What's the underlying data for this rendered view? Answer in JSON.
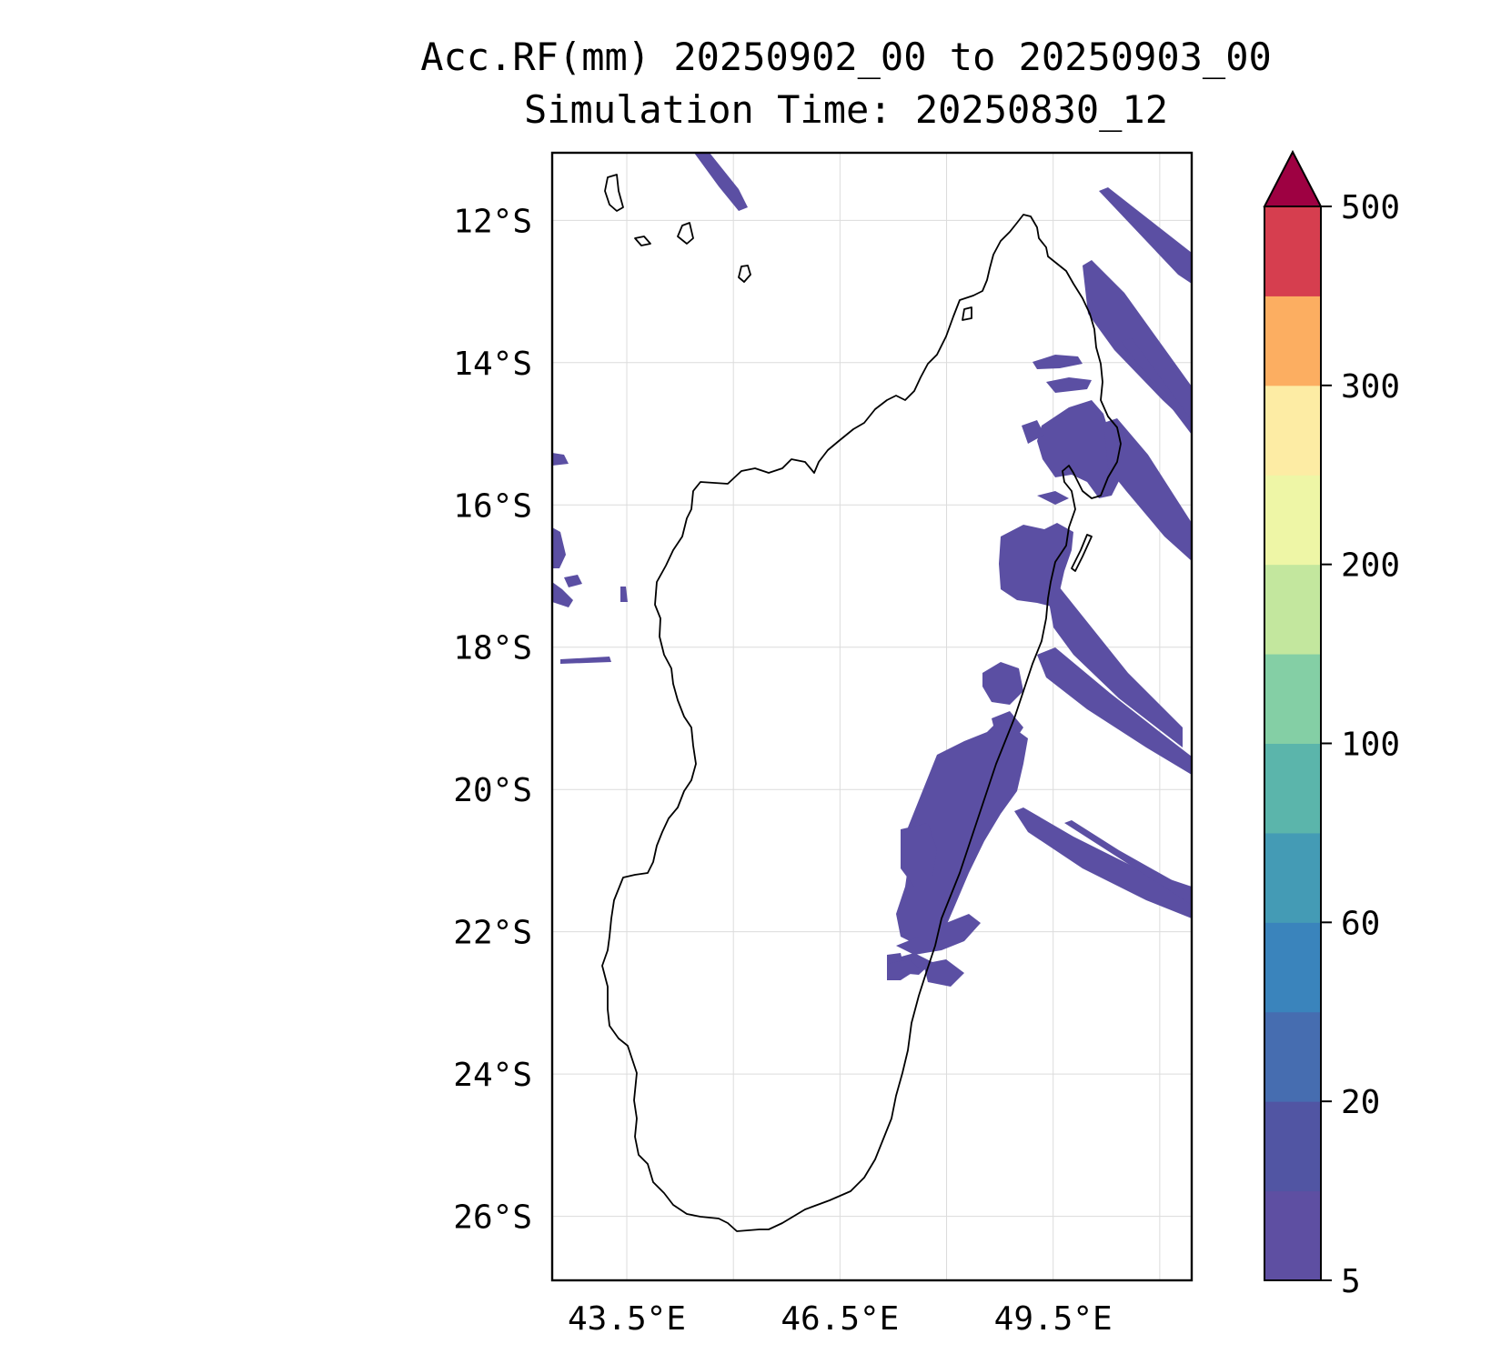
{
  "title": "Acc.RF(mm) 20250902_00 to 20250903_00",
  "subtitle": "Simulation Time: 20250830_12",
  "map": {
    "lon_range": [
      42.45,
      51.45
    ],
    "lat_range": [
      -26.9,
      -11.05
    ],
    "lon_ticks": [
      {
        "value": 43.5,
        "label": "43.5°E"
      },
      {
        "value": 46.5,
        "label": "46.5°E"
      },
      {
        "value": 49.5,
        "label": "49.5°E"
      }
    ],
    "lat_ticks": [
      {
        "value": -12,
        "label": "12°S"
      },
      {
        "value": -14,
        "label": "14°S"
      },
      {
        "value": -16,
        "label": "16°S"
      },
      {
        "value": -18,
        "label": "18°S"
      },
      {
        "value": -20,
        "label": "20°S"
      },
      {
        "value": -22,
        "label": "22°S"
      },
      {
        "value": -24,
        "label": "24°S"
      },
      {
        "value": -26,
        "label": "26°S"
      }
    ],
    "grid_lons": [
      43.5,
      45,
      46.5,
      48,
      49.5,
      51
    ],
    "grid": true,
    "coastline_color": "#000000",
    "rain_color": "#5b4fa3"
  },
  "colorbar": {
    "levels": [
      5,
      10,
      20,
      40,
      60,
      80,
      100,
      150,
      200,
      250,
      300,
      400,
      500
    ],
    "labels": [
      "5",
      "20",
      "60",
      "100",
      "200",
      "300",
      "500"
    ],
    "label_positions": [
      0,
      2,
      4,
      6,
      8,
      10,
      12
    ],
    "colors": [
      "#5e4fa2",
      "#5155a3",
      "#466db0",
      "#3a84bc",
      "#449bb5",
      "#5bb5ab",
      "#84cfa5",
      "#c3e79e",
      "#eef6a6",
      "#fdeca4",
      "#fcae61",
      "#d63e4f"
    ],
    "extend_color": "#9e0142",
    "extend": "max",
    "placement": "right"
  }
}
